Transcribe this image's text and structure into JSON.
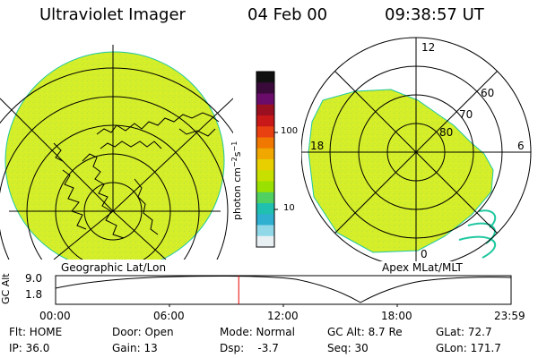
{
  "header": {
    "title": "Ultraviolet Imager",
    "date": "04 Feb 00",
    "time": "09:38:57 UT"
  },
  "left_map": {
    "caption": "Geographic Lat/Lon"
  },
  "right_map": {
    "caption": "Apex MLat/MLT",
    "mlt_labels": {
      "top": "12",
      "left": "18",
      "right": "6",
      "bottom": "0"
    },
    "lat_labels": [
      "60",
      "70",
      "80"
    ]
  },
  "colorbar": {
    "unit_label": "photon cm",
    "unit_exp1": "−2",
    "unit_s": "s",
    "unit_exp2": "−1",
    "ticks": [
      "100",
      "10"
    ],
    "scale": "log",
    "colors": [
      "#111111",
      "#3a0a3a",
      "#6a0c6a",
      "#9a1020",
      "#c81818",
      "#e84010",
      "#f07800",
      "#f0a800",
      "#e8d000",
      "#c8e000",
      "#9ae000",
      "#50d060",
      "#20c0b0",
      "#30b0d0",
      "#90d8e8",
      "#e8f0f4"
    ]
  },
  "altitude_plot": {
    "ylabel": "GC Alt",
    "y_ticks": [
      "9.0",
      "1.8"
    ],
    "x_ticks": [
      "00:00",
      "06:00",
      "12:00",
      "18:00",
      "23:59"
    ],
    "marker_time_hours": 9.649,
    "marker_color": "#e00000"
  },
  "info_rows": [
    [
      "Flt: HOME",
      "Door: Open",
      "Mode: Normal",
      "GC Alt: 8.7 Re",
      "GLat: 72.7"
    ],
    [
      "IP: 36.0",
      "Gain: 13",
      "Dsp:    -3.7",
      "Seq: 30",
      "GLon: 171.7"
    ]
  ],
  "colors": {
    "fill": "#d4ee2a",
    "fill_edge": "#20c8a0"
  }
}
